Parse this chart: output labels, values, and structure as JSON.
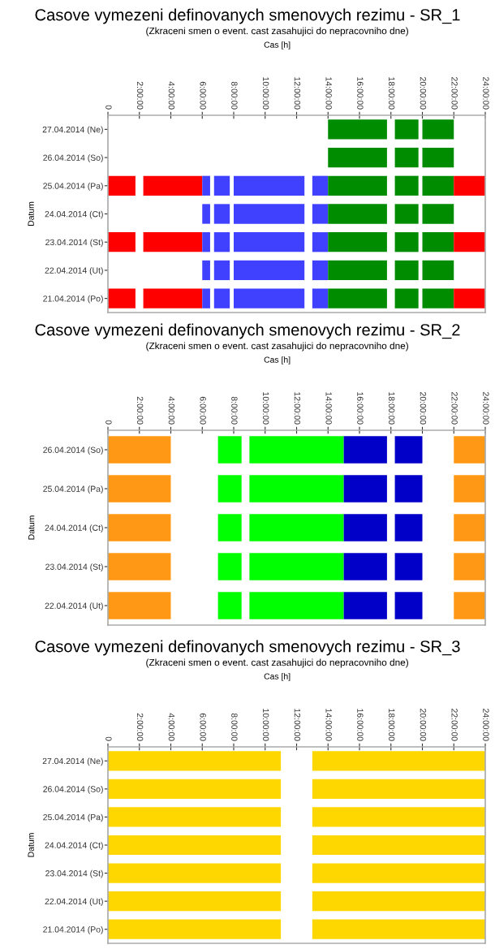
{
  "chart_data": [
    {
      "type": "bar",
      "orientation": "horizontal",
      "title": "Casove vymezeni definovanych smenovych rezimu - SR_1",
      "subtitle": "(Zkraceni smen o event. cast zasahujici do nepracovniho dne)",
      "xlabel": "Cas [h]",
      "ylabel": "Datum",
      "categories": [
        "27.04.2014 (Ne)",
        "26.04.2014 (So)",
        "25.04.2014 (Pa)",
        "24.04.2014 (Ct)",
        "23.04.2014 (St)",
        "22.04.2014 (Ut)",
        "21.04.2014 (Po)"
      ],
      "xlim": [
        0,
        24
      ],
      "xticks": [
        0,
        {
          "value": 2,
          "label": "2:00:00"
        },
        {
          "value": 4,
          "label": "4:00:00"
        },
        {
          "value": 6,
          "label": "6:00:00"
        },
        {
          "value": 8,
          "label": "8:00:00"
        },
        {
          "value": 10,
          "label": "10:00:00"
        },
        {
          "value": 12,
          "label": "12:00:00"
        },
        {
          "value": 14,
          "label": "14:00:00"
        },
        {
          "value": 16,
          "label": "16:00:00"
        },
        {
          "value": 18,
          "label": "18:00:00"
        },
        {
          "value": 20,
          "label": "20:00:00"
        },
        {
          "value": 22,
          "label": "22:00:00"
        },
        {
          "value": 24,
          "label": "24:00:00"
        }
      ],
      "series": [
        {
          "color": "#ff0000",
          "base": [
            null,
            null,
            0,
            null,
            0,
            null,
            0
          ],
          "values": [
            null,
            null,
            1.75,
            null,
            1.75,
            null,
            1.75
          ]
        },
        {
          "color": "#ff0000",
          "base": [
            null,
            null,
            2.25,
            null,
            2.25,
            null,
            2.25
          ],
          "values": [
            null,
            null,
            3.75,
            null,
            3.75,
            null,
            3.75
          ]
        },
        {
          "color": "#4040ff",
          "base": [
            null,
            null,
            6,
            6,
            6,
            6,
            6
          ],
          "values": [
            null,
            null,
            0.5,
            0.5,
            0.5,
            0.5,
            0.5
          ]
        },
        {
          "color": "#4040ff",
          "base": [
            null,
            null,
            6.75,
            6.75,
            6.75,
            6.75,
            6.75
          ],
          "values": [
            null,
            null,
            1,
            1,
            1,
            1,
            1
          ]
        },
        {
          "color": "#4040ff",
          "base": [
            null,
            null,
            8,
            8,
            8,
            8,
            8
          ],
          "values": [
            null,
            null,
            4.5,
            4.5,
            4.5,
            4.5,
            4.5
          ]
        },
        {
          "color": "#4040ff",
          "base": [
            null,
            null,
            13,
            13,
            13,
            13,
            13
          ],
          "values": [
            null,
            null,
            1,
            1,
            1,
            1,
            1
          ]
        },
        {
          "color": "#008c00",
          "base": [
            14,
            14,
            14,
            14,
            14,
            14,
            14
          ],
          "values": [
            3.75,
            3.75,
            3.75,
            3.75,
            3.75,
            3.75,
            3.75
          ]
        },
        {
          "color": "#008c00",
          "base": [
            18.25,
            18.25,
            18.25,
            18.25,
            18.25,
            18.25,
            18.25
          ],
          "values": [
            1.5,
            1.5,
            1.5,
            1.5,
            1.5,
            1.5,
            1.5
          ]
        },
        {
          "color": "#008c00",
          "base": [
            20,
            20,
            20,
            20,
            20,
            20,
            20
          ],
          "values": [
            2,
            2,
            2,
            2,
            2,
            2,
            2
          ]
        },
        {
          "color": "#ff0000",
          "base": [
            null,
            null,
            22,
            null,
            22,
            null,
            22
          ],
          "values": [
            null,
            null,
            2,
            null,
            2,
            null,
            2
          ]
        }
      ]
    },
    {
      "type": "bar",
      "orientation": "horizontal",
      "title": "Casove vymezeni definovanych smenovych rezimu - SR_2",
      "subtitle": "(Zkraceni smen o event. cast zasahujici do nepracovniho dne)",
      "xlabel": "Cas [h]",
      "ylabel": "Datum",
      "categories": [
        "26.04.2014 (So)",
        "25.04.2014 (Pa)",
        "24.04.2014 (Ct)",
        "23.04.2014 (St)",
        "22.04.2014 (Ut)"
      ],
      "xlim": [
        0,
        24
      ],
      "xticks": [
        0,
        {
          "value": 2,
          "label": "2:00:00"
        },
        {
          "value": 4,
          "label": "4:00:00"
        },
        {
          "value": 6,
          "label": "6:00:00"
        },
        {
          "value": 8,
          "label": "8:00:00"
        },
        {
          "value": 10,
          "label": "10:00:00"
        },
        {
          "value": 12,
          "label": "12:00:00"
        },
        {
          "value": 14,
          "label": "14:00:00"
        },
        {
          "value": 16,
          "label": "16:00:00"
        },
        {
          "value": 18,
          "label": "18:00:00"
        },
        {
          "value": 20,
          "label": "20:00:00"
        },
        {
          "value": 22,
          "label": "22:00:00"
        },
        {
          "value": 24,
          "label": "24:00:00"
        }
      ],
      "series": [
        {
          "color": "#ff9915",
          "base": [
            0,
            0,
            0,
            0,
            0
          ],
          "values": [
            4,
            4,
            4,
            4,
            4
          ]
        },
        {
          "color": "#00ff00",
          "base": [
            7,
            7,
            7,
            7,
            7
          ],
          "values": [
            1.5,
            1.5,
            1.5,
            1.5,
            1.5
          ]
        },
        {
          "color": "#00ff00",
          "base": [
            9,
            9,
            9,
            9,
            9
          ],
          "values": [
            6,
            6,
            6,
            6,
            6
          ]
        },
        {
          "color": "#0000c8",
          "base": [
            15,
            15,
            15,
            15,
            15
          ],
          "values": [
            2.75,
            2.75,
            2.75,
            2.75,
            2.75
          ]
        },
        {
          "color": "#0000c8",
          "base": [
            18.25,
            18.25,
            18.25,
            18.25,
            18.25
          ],
          "values": [
            1.75,
            1.75,
            1.75,
            1.75,
            1.75
          ]
        },
        {
          "color": "#ff9915",
          "base": [
            22,
            22,
            22,
            22,
            22
          ],
          "values": [
            2,
            2,
            2,
            2,
            2
          ]
        }
      ]
    },
    {
      "type": "bar",
      "orientation": "horizontal",
      "title": "Casove vymezeni definovanych smenovych rezimu - SR_3",
      "subtitle": "(Zkraceni smen o event. cast zasahujici do nepracovniho dne)",
      "xlabel": "Cas [h]",
      "ylabel": "Datum",
      "categories": [
        "27.04.2014 (Ne)",
        "26.04.2014 (So)",
        "25.04.2014 (Pa)",
        "24.04.2014 (Ct)",
        "23.04.2014 (St)",
        "22.04.2014 (Ut)",
        "21.04.2014 (Po)"
      ],
      "xlim": [
        0,
        24
      ],
      "xticks": [
        0,
        {
          "value": 2,
          "label": "2:00:00"
        },
        {
          "value": 4,
          "label": "4:00:00"
        },
        {
          "value": 6,
          "label": "6:00:00"
        },
        {
          "value": 8,
          "label": "8:00:00"
        },
        {
          "value": 10,
          "label": "10:00:00"
        },
        {
          "value": 12,
          "label": "12:00:00"
        },
        {
          "value": 14,
          "label": "14:00:00"
        },
        {
          "value": 16,
          "label": "16:00:00"
        },
        {
          "value": 18,
          "label": "18:00:00"
        },
        {
          "value": 20,
          "label": "20:00:00"
        },
        {
          "value": 22,
          "label": "22:00:00"
        },
        {
          "value": 24,
          "label": "24:00:00"
        }
      ],
      "series": [
        {
          "color": "#ffd700",
          "base": [
            0,
            0,
            0,
            0,
            0,
            0,
            0
          ],
          "values": [
            11,
            11,
            11,
            11,
            11,
            11,
            11
          ]
        },
        {
          "color": "#ffd700",
          "base": [
            13,
            13,
            13,
            13,
            13,
            13,
            13
          ],
          "values": [
            11,
            11,
            11,
            11,
            11,
            11,
            11
          ]
        }
      ]
    }
  ]
}
